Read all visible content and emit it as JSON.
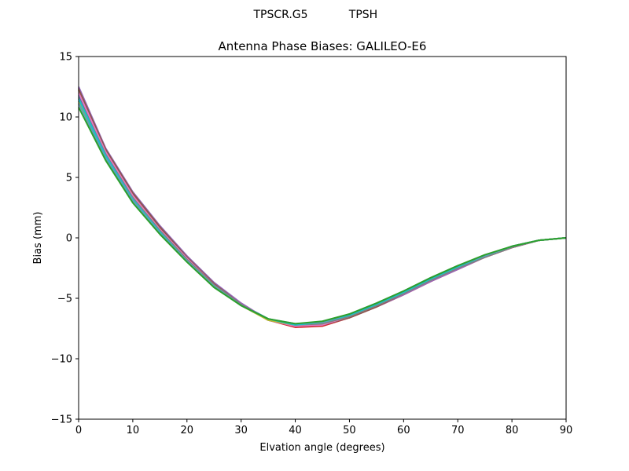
{
  "figure": {
    "suptitle_left": "TPSCR.G5",
    "suptitle_right": "TPSH"
  },
  "chart_data": {
    "type": "line",
    "title": "Antenna Phase Biases: GALILEO-E6",
    "xlabel": "Elvation angle (degrees)",
    "ylabel": "Bias (mm)",
    "xlim": [
      0,
      90
    ],
    "ylim": [
      -15,
      15
    ],
    "xticks": [
      0,
      10,
      20,
      30,
      40,
      50,
      60,
      70,
      80,
      90
    ],
    "yticks": [
      -15,
      -10,
      -5,
      0,
      5,
      10,
      15
    ],
    "ytick_labels": [
      "−15",
      "−10",
      "−5",
      "0",
      "5",
      "10",
      "15"
    ],
    "grid": false,
    "x": [
      0,
      5,
      10,
      15,
      20,
      25,
      30,
      35,
      40,
      45,
      50,
      55,
      60,
      65,
      70,
      75,
      80,
      85,
      90
    ],
    "series": [
      {
        "color": "#1f77b4",
        "values": [
          11.8,
          7.0,
          3.4,
          0.6,
          -1.8,
          -3.9,
          -5.5,
          -6.7,
          -7.2,
          -7.1,
          -6.4,
          -5.5,
          -4.5,
          -3.4,
          -2.4,
          -1.5,
          -0.7,
          -0.2,
          0.0
        ]
      },
      {
        "color": "#ff7f0e",
        "values": [
          12.2,
          7.2,
          3.6,
          0.8,
          -1.7,
          -3.8,
          -5.5,
          -6.8,
          -7.3,
          -7.2,
          -6.6,
          -5.7,
          -4.7,
          -3.6,
          -2.5,
          -1.6,
          -0.8,
          -0.2,
          0.0
        ]
      },
      {
        "color": "#d62728",
        "values": [
          12.4,
          7.3,
          3.7,
          0.9,
          -1.6,
          -3.8,
          -5.5,
          -6.8,
          -7.4,
          -7.3,
          -6.6,
          -5.7,
          -4.7,
          -3.6,
          -2.6,
          -1.6,
          -0.8,
          -0.2,
          0.0
        ]
      },
      {
        "color": "#9467bd",
        "values": [
          12.5,
          7.4,
          3.8,
          1.0,
          -1.5,
          -3.7,
          -5.4,
          -6.8,
          -7.3,
          -7.2,
          -6.6,
          -5.7,
          -4.7,
          -3.6,
          -2.6,
          -1.6,
          -0.8,
          -0.2,
          0.0
        ]
      },
      {
        "color": "#8c564b",
        "values": [
          12.3,
          7.3,
          3.7,
          0.9,
          -1.6,
          -3.8,
          -5.5,
          -6.8,
          -7.3,
          -7.2,
          -6.6,
          -5.7,
          -4.6,
          -3.5,
          -2.5,
          -1.6,
          -0.8,
          -0.2,
          0.0
        ]
      },
      {
        "color": "#e377c2",
        "values": [
          12.0,
          7.1,
          3.5,
          0.7,
          -1.7,
          -3.9,
          -5.5,
          -6.8,
          -7.3,
          -7.2,
          -6.5,
          -5.6,
          -4.6,
          -3.5,
          -2.5,
          -1.6,
          -0.8,
          -0.2,
          0.0
        ]
      },
      {
        "color": "#7f7f7f",
        "values": [
          11.6,
          6.9,
          3.3,
          0.6,
          -1.8,
          -3.9,
          -5.5,
          -6.8,
          -7.2,
          -7.1,
          -6.5,
          -5.6,
          -4.6,
          -3.5,
          -2.5,
          -1.6,
          -0.8,
          -0.2,
          0.0
        ]
      },
      {
        "color": "#bcbd22",
        "values": [
          11.3,
          6.7,
          3.2,
          0.5,
          -1.9,
          -4.0,
          -5.6,
          -6.8,
          -7.2,
          -7.0,
          -6.4,
          -5.5,
          -4.5,
          -3.4,
          -2.4,
          -1.5,
          -0.7,
          -0.2,
          0.0
        ]
      },
      {
        "color": "#17becf",
        "values": [
          11.5,
          6.8,
          3.2,
          0.5,
          -1.9,
          -4.0,
          -5.6,
          -6.7,
          -7.2,
          -7.0,
          -6.4,
          -5.5,
          -4.5,
          -3.4,
          -2.4,
          -1.5,
          -0.7,
          -0.2,
          0.0
        ]
      },
      {
        "color": "#5fa0b8",
        "values": [
          11.1,
          6.6,
          3.1,
          0.4,
          -1.9,
          -4.0,
          -5.6,
          -6.7,
          -7.1,
          -7.0,
          -6.3,
          -5.4,
          -4.4,
          -3.3,
          -2.3,
          -1.5,
          -0.7,
          -0.2,
          0.0
        ]
      },
      {
        "color": "#2ca02c",
        "values": [
          10.8,
          6.4,
          2.9,
          0.3,
          -2.0,
          -4.1,
          -5.6,
          -6.7,
          -7.1,
          -6.9,
          -6.3,
          -5.4,
          -4.4,
          -3.3,
          -2.3,
          -1.4,
          -0.7,
          -0.2,
          0.0
        ]
      }
    ]
  }
}
